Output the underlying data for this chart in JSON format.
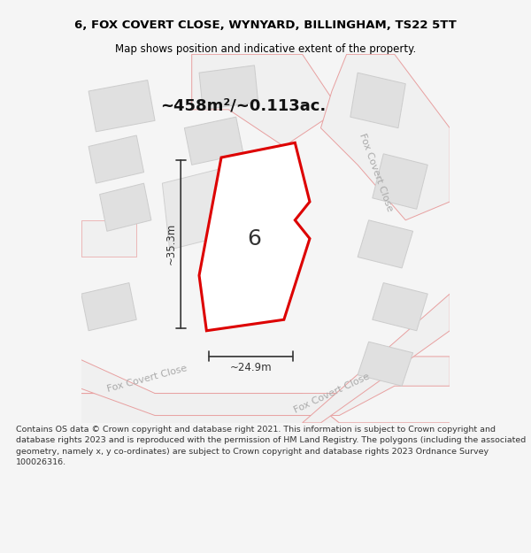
{
  "title_line1": "6, FOX COVERT CLOSE, WYNYARD, BILLINGHAM, TS22 5TT",
  "title_line2": "Map shows position and indicative extent of the property.",
  "area_text": "~458m²/~0.113ac.",
  "dim_width": "~24.9m",
  "dim_height": "~35.3m",
  "plot_label": "6",
  "footer_text": "Contains OS data © Crown copyright and database right 2021. This information is subject to Crown copyright and database rights 2023 and is reproduced with the permission of HM Land Registry. The polygons (including the associated geometry, namely x, y co-ordinates) are subject to Crown copyright and database rights 2023 Ordnance Survey 100026316.",
  "bg_color": "#f5f5f5",
  "map_bg": "#ffffff",
  "road_fill": "#f0f0f0",
  "road_stroke": "#e8a0a0",
  "building_fill": "#e0e0e0",
  "building_stroke": "#cccccc",
  "plot_stroke": "#dd0000",
  "plot_fill": "#ffffff",
  "dim_color": "#333333",
  "street_label_color": "#aaaaaa",
  "title_color": "#000000",
  "footer_color": "#333333"
}
